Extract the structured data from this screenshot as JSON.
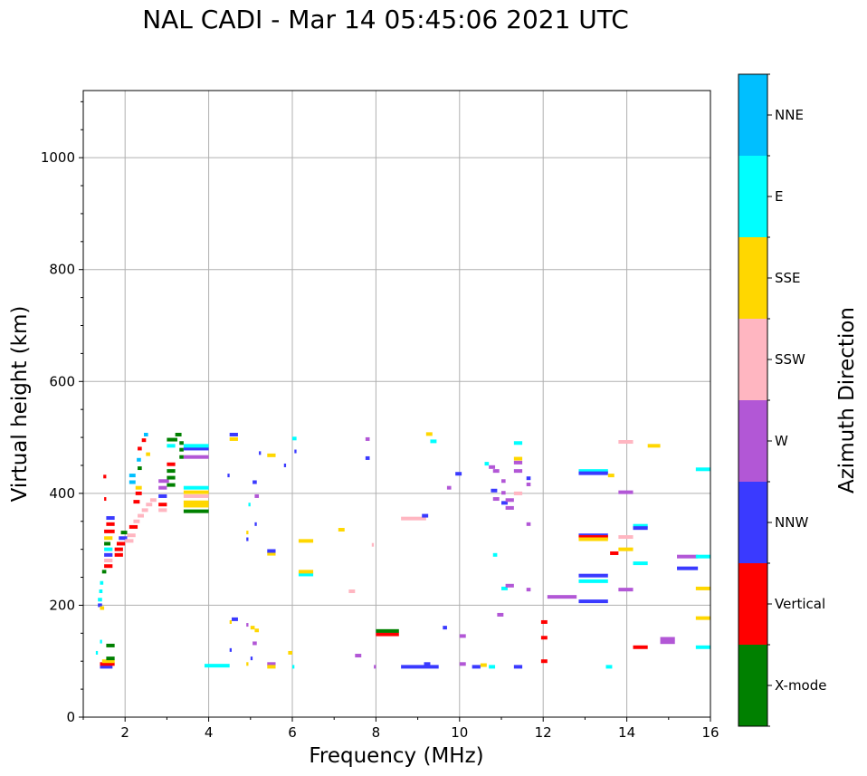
{
  "chart_data": {
    "type": "scatter",
    "title": "NAL CADI - Mar 14 05:45:06 2021 UTC",
    "xlabel": "Frequency (MHz)",
    "ylabel": "Virtual height (km)",
    "xlim": [
      1,
      16
    ],
    "ylim": [
      0,
      1120
    ],
    "xticks": [
      2,
      4,
      6,
      8,
      10,
      12,
      14,
      16
    ],
    "yticks": [
      0,
      200,
      400,
      600,
      800,
      1000
    ],
    "grid": true,
    "colorbar": {
      "label": "Azimuth Direction",
      "categories": [
        {
          "name": "X-mode",
          "color": "#008000"
        },
        {
          "name": "Vertical",
          "color": "#ff0000"
        },
        {
          "name": "NNW",
          "color": "#3a3aff"
        },
        {
          "name": "W",
          "color": "#b257d6"
        },
        {
          "name": "SSW",
          "color": "#ffb6c1"
        },
        {
          "name": "SSE",
          "color": "#ffd700"
        },
        {
          "name": "E",
          "color": "#00ffff"
        },
        {
          "name": "NNE",
          "color": "#00bfff"
        }
      ]
    },
    "segments": [
      {
        "f0": 1.35,
        "f1": 1.45,
        "h": 200,
        "c": "NNW"
      },
      {
        "f0": 1.35,
        "f1": 1.45,
        "h": 210,
        "c": "E"
      },
      {
        "f0": 1.38,
        "f1": 1.46,
        "h": 225,
        "c": "E"
      },
      {
        "f0": 1.4,
        "f1": 1.48,
        "h": 240,
        "c": "E"
      },
      {
        "f0": 1.4,
        "f1": 1.5,
        "h": 195,
        "c": "SSE"
      },
      {
        "f0": 1.45,
        "f1": 1.55,
        "h": 260,
        "c": "X-mode"
      },
      {
        "f0": 1.5,
        "f1": 1.7,
        "h": 270,
        "c": "Vertical"
      },
      {
        "f0": 1.5,
        "f1": 1.7,
        "h": 280,
        "c": "SSW"
      },
      {
        "f0": 1.5,
        "f1": 1.7,
        "h": 290,
        "c": "NNW"
      },
      {
        "f0": 1.5,
        "f1": 1.7,
        "h": 300,
        "c": "E"
      },
      {
        "f0": 1.5,
        "f1": 1.65,
        "h": 310,
        "c": "X-mode"
      },
      {
        "f0": 1.5,
        "f1": 1.7,
        "h": 320,
        "c": "SSE"
      },
      {
        "f0": 1.5,
        "f1": 1.75,
        "h": 332,
        "c": "Vertical"
      },
      {
        "f0": 1.55,
        "f1": 1.75,
        "h": 345,
        "c": "Vertical"
      },
      {
        "f0": 1.55,
        "f1": 1.75,
        "h": 356,
        "c": "NNW"
      },
      {
        "f0": 1.48,
        "f1": 1.55,
        "h": 430,
        "c": "Vertical"
      },
      {
        "f0": 1.5,
        "f1": 1.55,
        "h": 390,
        "c": "Vertical"
      },
      {
        "f0": 1.4,
        "f1": 1.7,
        "h": 90,
        "c": "NNW"
      },
      {
        "f0": 1.4,
        "f1": 1.75,
        "h": 95,
        "c": "Vertical"
      },
      {
        "f0": 1.45,
        "f1": 1.75,
        "h": 100,
        "c": "SSE"
      },
      {
        "f0": 1.55,
        "f1": 1.75,
        "h": 105,
        "c": "X-mode"
      },
      {
        "f0": 1.55,
        "f1": 1.75,
        "h": 128,
        "c": "X-mode"
      },
      {
        "f0": 1.4,
        "f1": 1.45,
        "h": 135,
        "c": "E"
      },
      {
        "f0": 1.3,
        "f1": 1.35,
        "h": 115,
        "c": "E"
      },
      {
        "f0": 1.75,
        "f1": 1.95,
        "h": 290,
        "c": "Vertical"
      },
      {
        "f0": 1.75,
        "f1": 1.95,
        "h": 300,
        "c": "Vertical"
      },
      {
        "f0": 1.8,
        "f1": 2.0,
        "h": 310,
        "c": "Vertical"
      },
      {
        "f0": 1.85,
        "f1": 2.05,
        "h": 320,
        "c": "NNW"
      },
      {
        "f0": 1.9,
        "f1": 2.05,
        "h": 330,
        "c": "X-mode"
      },
      {
        "f0": 2.0,
        "f1": 2.2,
        "h": 315,
        "c": "SSW"
      },
      {
        "f0": 2.05,
        "f1": 2.25,
        "h": 325,
        "c": "SSW"
      },
      {
        "f0": 2.1,
        "f1": 2.3,
        "h": 340,
        "c": "Vertical"
      },
      {
        "f0": 2.2,
        "f1": 2.35,
        "h": 350,
        "c": "SSW"
      },
      {
        "f0": 2.3,
        "f1": 2.45,
        "h": 360,
        "c": "SSW"
      },
      {
        "f0": 2.4,
        "f1": 2.55,
        "h": 370,
        "c": "SSW"
      },
      {
        "f0": 2.5,
        "f1": 2.65,
        "h": 380,
        "c": "SSW"
      },
      {
        "f0": 2.6,
        "f1": 2.75,
        "h": 388,
        "c": "SSW"
      },
      {
        "f0": 2.2,
        "f1": 2.35,
        "h": 385,
        "c": "Vertical"
      },
      {
        "f0": 2.25,
        "f1": 2.4,
        "h": 400,
        "c": "Vertical"
      },
      {
        "f0": 2.25,
        "f1": 2.4,
        "h": 410,
        "c": "SSE"
      },
      {
        "f0": 2.1,
        "f1": 2.25,
        "h": 420,
        "c": "NNE"
      },
      {
        "f0": 2.1,
        "f1": 2.25,
        "h": 432,
        "c": "NNE"
      },
      {
        "f0": 2.3,
        "f1": 2.4,
        "h": 445,
        "c": "X-mode"
      },
      {
        "f0": 2.28,
        "f1": 2.38,
        "h": 460,
        "c": "NNE"
      },
      {
        "f0": 2.3,
        "f1": 2.4,
        "h": 480,
        "c": "Vertical"
      },
      {
        "f0": 2.4,
        "f1": 2.5,
        "h": 495,
        "c": "Vertical"
      },
      {
        "f0": 2.45,
        "f1": 2.55,
        "h": 505,
        "c": "NNE"
      },
      {
        "f0": 2.5,
        "f1": 2.6,
        "h": 470,
        "c": "SSE"
      },
      {
        "f0": 2.8,
        "f1": 3.0,
        "h": 395,
        "c": "NNW"
      },
      {
        "f0": 2.8,
        "f1": 3.0,
        "h": 380,
        "c": "Vertical"
      },
      {
        "f0": 2.8,
        "f1": 3.0,
        "h": 410,
        "c": "W"
      },
      {
        "f0": 2.8,
        "f1": 3.05,
        "h": 422,
        "c": "W"
      },
      {
        "f0": 2.8,
        "f1": 3.0,
        "h": 370,
        "c": "SSW"
      },
      {
        "f0": 3.0,
        "f1": 3.2,
        "h": 415,
        "c": "X-mode"
      },
      {
        "f0": 3.0,
        "f1": 3.2,
        "h": 428,
        "c": "X-mode"
      },
      {
        "f0": 3.0,
        "f1": 3.2,
        "h": 440,
        "c": "X-mode"
      },
      {
        "f0": 3.0,
        "f1": 3.2,
        "h": 452,
        "c": "Vertical"
      },
      {
        "f0": 3.0,
        "f1": 3.2,
        "h": 485,
        "c": "E"
      },
      {
        "f0": 3.0,
        "f1": 3.25,
        "h": 496,
        "c": "X-mode"
      },
      {
        "f0": 3.2,
        "f1": 3.35,
        "h": 505,
        "c": "X-mode"
      },
      {
        "f0": 3.3,
        "f1": 3.4,
        "h": 465,
        "c": "X-mode"
      },
      {
        "f0": 3.3,
        "f1": 3.4,
        "h": 478,
        "c": "X-mode"
      },
      {
        "f0": 3.3,
        "f1": 3.4,
        "h": 490,
        "c": "X-mode"
      },
      {
        "f0": 3.4,
        "f1": 4.0,
        "h": 368,
        "c": "X-mode"
      },
      {
        "f0": 3.4,
        "f1": 4.0,
        "h": 378,
        "c": "SSE"
      },
      {
        "f0": 3.4,
        "f1": 4.0,
        "h": 384,
        "c": "SSE"
      },
      {
        "f0": 3.4,
        "f1": 4.0,
        "h": 395,
        "c": "SSW"
      },
      {
        "f0": 3.4,
        "f1": 4.0,
        "h": 402,
        "c": "SSE"
      },
      {
        "f0": 3.4,
        "f1": 4.0,
        "h": 410,
        "c": "E"
      },
      {
        "f0": 3.4,
        "f1": 4.0,
        "h": 465,
        "c": "W"
      },
      {
        "f0": 3.4,
        "f1": 4.0,
        "h": 480,
        "c": "NNW"
      },
      {
        "f0": 3.4,
        "f1": 4.0,
        "h": 485,
        "c": "E"
      },
      {
        "f0": 3.9,
        "f1": 4.5,
        "h": 92,
        "c": "E"
      },
      {
        "f0": 4.5,
        "f1": 4.7,
        "h": 505,
        "c": "NNW"
      },
      {
        "f0": 4.5,
        "f1": 4.7,
        "h": 497,
        "c": "SSE"
      },
      {
        "f0": 4.45,
        "f1": 4.5,
        "h": 432,
        "c": "NNW"
      },
      {
        "f0": 4.55,
        "f1": 4.7,
        "h": 175,
        "c": "NNW"
      },
      {
        "f0": 4.5,
        "f1": 4.55,
        "h": 170,
        "c": "SSE"
      },
      {
        "f0": 4.5,
        "f1": 4.55,
        "h": 120,
        "c": "NNW"
      },
      {
        "f0": 4.9,
        "f1": 4.95,
        "h": 165,
        "c": "W"
      },
      {
        "f0": 5.0,
        "f1": 5.1,
        "h": 160,
        "c": "SSE"
      },
      {
        "f0": 5.1,
        "f1": 5.2,
        "h": 155,
        "c": "SSE"
      },
      {
        "f0": 5.0,
        "f1": 5.05,
        "h": 105,
        "c": "NNW"
      },
      {
        "f0": 4.9,
        "f1": 4.95,
        "h": 95,
        "c": "SSE"
      },
      {
        "f0": 5.4,
        "f1": 5.6,
        "h": 95,
        "c": "W"
      },
      {
        "f0": 5.4,
        "f1": 5.6,
        "h": 90,
        "c": "SSE"
      },
      {
        "f0": 5.05,
        "f1": 5.15,
        "h": 132,
        "c": "W"
      },
      {
        "f0": 4.95,
        "f1": 5.0,
        "h": 380,
        "c": "E"
      },
      {
        "f0": 4.9,
        "f1": 4.95,
        "h": 330,
        "c": "SSE"
      },
      {
        "f0": 4.9,
        "f1": 4.95,
        "h": 318,
        "c": "NNW"
      },
      {
        "f0": 5.1,
        "f1": 5.15,
        "h": 345,
        "c": "NNW"
      },
      {
        "f0": 5.05,
        "f1": 5.15,
        "h": 420,
        "c": "NNW"
      },
      {
        "f0": 5.1,
        "f1": 5.2,
        "h": 395,
        "c": "W"
      },
      {
        "f0": 5.2,
        "f1": 5.25,
        "h": 472,
        "c": "NNW"
      },
      {
        "f0": 5.4,
        "f1": 5.6,
        "h": 468,
        "c": "SSE"
      },
      {
        "f0": 5.4,
        "f1": 5.6,
        "h": 292,
        "c": "SSE"
      },
      {
        "f0": 5.4,
        "f1": 5.6,
        "h": 297,
        "c": "NNW"
      },
      {
        "f0": 5.8,
        "f1": 5.85,
        "h": 450,
        "c": "NNW"
      },
      {
        "f0": 5.9,
        "f1": 6.0,
        "h": 115,
        "c": "SSE"
      },
      {
        "f0": 6.0,
        "f1": 6.05,
        "h": 90,
        "c": "E"
      },
      {
        "f0": 6.0,
        "f1": 6.1,
        "h": 498,
        "c": "E"
      },
      {
        "f0": 6.05,
        "f1": 6.1,
        "h": 475,
        "c": "NNW"
      },
      {
        "f0": 6.15,
        "f1": 6.5,
        "h": 315,
        "c": "SSE"
      },
      {
        "f0": 6.15,
        "f1": 6.5,
        "h": 255,
        "c": "E"
      },
      {
        "f0": 6.15,
        "f1": 6.5,
        "h": 260,
        "c": "SSE"
      },
      {
        "f0": 7.1,
        "f1": 7.25,
        "h": 335,
        "c": "SSE"
      },
      {
        "f0": 7.35,
        "f1": 7.5,
        "h": 225,
        "c": "SSW"
      },
      {
        "f0": 7.5,
        "f1": 7.65,
        "h": 110,
        "c": "W"
      },
      {
        "f0": 7.75,
        "f1": 7.85,
        "h": 497,
        "c": "W"
      },
      {
        "f0": 7.75,
        "f1": 7.85,
        "h": 463,
        "c": "NNW"
      },
      {
        "f0": 7.9,
        "f1": 7.95,
        "h": 308,
        "c": "SSW"
      },
      {
        "f0": 7.95,
        "f1": 8.0,
        "h": 90,
        "c": "W"
      },
      {
        "f0": 8.0,
        "f1": 8.55,
        "h": 148,
        "c": "Vertical"
      },
      {
        "f0": 8.0,
        "f1": 8.55,
        "h": 154,
        "c": "X-mode"
      },
      {
        "f0": 8.6,
        "f1": 9.5,
        "h": 90,
        "c": "NNW"
      },
      {
        "f0": 8.6,
        "f1": 9.2,
        "h": 355,
        "c": "SSW"
      },
      {
        "f0": 9.1,
        "f1": 9.25,
        "h": 360,
        "c": "NNW"
      },
      {
        "f0": 9.15,
        "f1": 9.3,
        "h": 95,
        "c": "NNW"
      },
      {
        "f0": 9.2,
        "f1": 9.35,
        "h": 506,
        "c": "SSE"
      },
      {
        "f0": 9.3,
        "f1": 9.45,
        "h": 493,
        "c": "E"
      },
      {
        "f0": 9.6,
        "f1": 9.7,
        "h": 160,
        "c": "NNW"
      },
      {
        "f0": 9.7,
        "f1": 9.8,
        "h": 410,
        "c": "W"
      },
      {
        "f0": 9.9,
        "f1": 10.05,
        "h": 435,
        "c": "NNW"
      },
      {
        "f0": 10.0,
        "f1": 10.15,
        "h": 145,
        "c": "W"
      },
      {
        "f0": 10.0,
        "f1": 10.15,
        "h": 95,
        "c": "W"
      },
      {
        "f0": 10.3,
        "f1": 10.5,
        "h": 90,
        "c": "NNW"
      },
      {
        "f0": 10.5,
        "f1": 10.65,
        "h": 93,
        "c": "SSE"
      },
      {
        "f0": 10.7,
        "f1": 10.85,
        "h": 90,
        "c": "E"
      },
      {
        "f0": 10.6,
        "f1": 10.7,
        "h": 453,
        "c": "E"
      },
      {
        "f0": 10.8,
        "f1": 10.9,
        "h": 290,
        "c": "E"
      },
      {
        "f0": 10.7,
        "f1": 10.85,
        "h": 447,
        "c": "W"
      },
      {
        "f0": 10.75,
        "f1": 10.9,
        "h": 405,
        "c": "NNW"
      },
      {
        "f0": 10.8,
        "f1": 10.95,
        "h": 440,
        "c": "W"
      },
      {
        "f0": 10.8,
        "f1": 10.95,
        "h": 390,
        "c": "W"
      },
      {
        "f0": 10.9,
        "f1": 11.05,
        "h": 183,
        "c": "W"
      },
      {
        "f0": 11.0,
        "f1": 11.1,
        "h": 422,
        "c": "W"
      },
      {
        "f0": 11.0,
        "f1": 11.15,
        "h": 383,
        "c": "NNW"
      },
      {
        "f0": 11.0,
        "f1": 11.15,
        "h": 230,
        "c": "E"
      },
      {
        "f0": 11.1,
        "f1": 11.3,
        "h": 235,
        "c": "W"
      },
      {
        "f0": 11.1,
        "f1": 11.3,
        "h": 388,
        "c": "W"
      },
      {
        "f0": 11.1,
        "f1": 11.3,
        "h": 374,
        "c": "W"
      },
      {
        "f0": 11.0,
        "f1": 11.1,
        "h": 401,
        "c": "W"
      },
      {
        "f0": 11.3,
        "f1": 11.5,
        "h": 490,
        "c": "E"
      },
      {
        "f0": 11.3,
        "f1": 11.5,
        "h": 462,
        "c": "SSE"
      },
      {
        "f0": 11.3,
        "f1": 11.5,
        "h": 455,
        "c": "W"
      },
      {
        "f0": 11.3,
        "f1": 11.5,
        "h": 440,
        "c": "W"
      },
      {
        "f0": 11.3,
        "f1": 11.5,
        "h": 400,
        "c": "SSW"
      },
      {
        "f0": 11.3,
        "f1": 11.5,
        "h": 90,
        "c": "NNW"
      },
      {
        "f0": 11.6,
        "f1": 11.7,
        "h": 427,
        "c": "NNW"
      },
      {
        "f0": 11.6,
        "f1": 11.7,
        "h": 416,
        "c": "W"
      },
      {
        "f0": 11.6,
        "f1": 11.7,
        "h": 345,
        "c": "W"
      },
      {
        "f0": 11.6,
        "f1": 11.7,
        "h": 228,
        "c": "W"
      },
      {
        "f0": 11.95,
        "f1": 12.1,
        "h": 170,
        "c": "Vertical"
      },
      {
        "f0": 11.95,
        "f1": 12.1,
        "h": 142,
        "c": "Vertical"
      },
      {
        "f0": 11.95,
        "f1": 12.1,
        "h": 100,
        "c": "Vertical"
      },
      {
        "f0": 12.1,
        "f1": 12.8,
        "h": 215,
        "c": "W"
      },
      {
        "f0": 12.85,
        "f1": 13.55,
        "h": 440,
        "c": "E"
      },
      {
        "f0": 12.85,
        "f1": 13.55,
        "h": 436,
        "c": "NNW"
      },
      {
        "f0": 12.85,
        "f1": 13.55,
        "h": 325,
        "c": "NNW"
      },
      {
        "f0": 12.85,
        "f1": 13.55,
        "h": 322,
        "c": "Vertical"
      },
      {
        "f0": 12.85,
        "f1": 13.55,
        "h": 318,
        "c": "SSE"
      },
      {
        "f0": 12.85,
        "f1": 13.55,
        "h": 253,
        "c": "NNW"
      },
      {
        "f0": 12.85,
        "f1": 13.55,
        "h": 243,
        "c": "E"
      },
      {
        "f0": 12.85,
        "f1": 13.55,
        "h": 207,
        "c": "NNW"
      },
      {
        "f0": 13.55,
        "f1": 13.7,
        "h": 432,
        "c": "SSE"
      },
      {
        "f0": 13.6,
        "f1": 13.8,
        "h": 293,
        "c": "Vertical"
      },
      {
        "f0": 13.5,
        "f1": 13.65,
        "h": 90,
        "c": "E"
      },
      {
        "f0": 13.8,
        "f1": 14.15,
        "h": 492,
        "c": "SSW"
      },
      {
        "f0": 13.8,
        "f1": 14.15,
        "h": 402,
        "c": "W"
      },
      {
        "f0": 13.8,
        "f1": 14.15,
        "h": 322,
        "c": "SSW"
      },
      {
        "f0": 13.8,
        "f1": 14.15,
        "h": 300,
        "c": "SSE"
      },
      {
        "f0": 13.8,
        "f1": 14.15,
        "h": 228,
        "c": "W"
      },
      {
        "f0": 14.15,
        "f1": 14.5,
        "h": 342,
        "c": "E"
      },
      {
        "f0": 14.15,
        "f1": 14.5,
        "h": 338,
        "c": "NNW"
      },
      {
        "f0": 14.15,
        "f1": 14.5,
        "h": 275,
        "c": "E"
      },
      {
        "f0": 14.15,
        "f1": 14.5,
        "h": 125,
        "c": "Vertical"
      },
      {
        "f0": 14.5,
        "f1": 14.8,
        "h": 485,
        "c": "SSE"
      },
      {
        "f0": 14.8,
        "f1": 15.15,
        "h": 140,
        "c": "W"
      },
      {
        "f0": 14.8,
        "f1": 15.15,
        "h": 134,
        "c": "W"
      },
      {
        "f0": 15.2,
        "f1": 15.7,
        "h": 287,
        "c": "W"
      },
      {
        "f0": 15.2,
        "f1": 15.7,
        "h": 266,
        "c": "NNW"
      },
      {
        "f0": 15.65,
        "f1": 16.0,
        "h": 443,
        "c": "E"
      },
      {
        "f0": 15.65,
        "f1": 16.0,
        "h": 287,
        "c": "E"
      },
      {
        "f0": 15.65,
        "f1": 16.0,
        "h": 230,
        "c": "SSE"
      },
      {
        "f0": 15.65,
        "f1": 16.0,
        "h": 177,
        "c": "SSE"
      },
      {
        "f0": 15.65,
        "f1": 16.0,
        "h": 125,
        "c": "E"
      }
    ]
  }
}
